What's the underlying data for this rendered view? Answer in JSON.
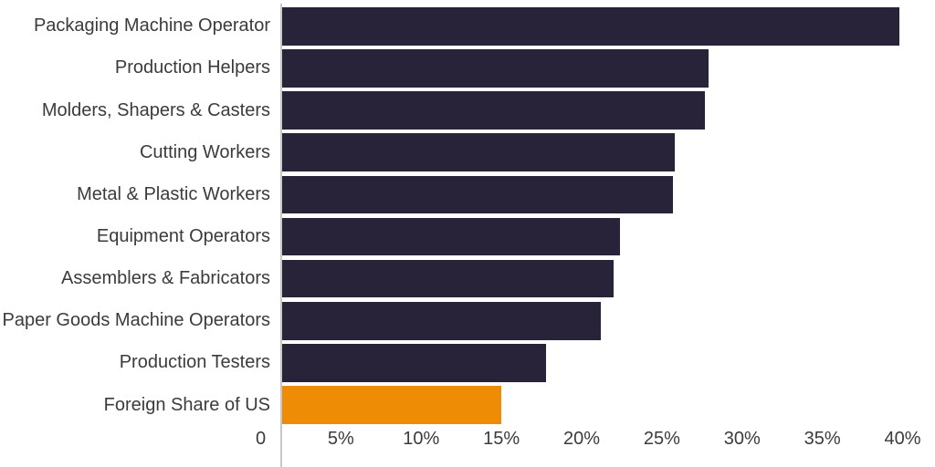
{
  "chart_data": {
    "type": "bar",
    "orientation": "horizontal",
    "title": "",
    "xlabel": "",
    "ylabel": "",
    "unit": "%",
    "xlim": [
      0,
      40
    ],
    "grid": false,
    "legend": false,
    "categories": [
      "Packaging Machine Operator",
      "Production Helpers",
      "Molders, Shapers & Casters",
      "Cutting Workers",
      "Metal & Plastic Workers",
      "Equipment Operators",
      "Assemblers & Fabricators",
      "Paper Goods Machine Operators",
      "Production Testers",
      "Foreign Share of US"
    ],
    "values": [
      39.8,
      27.9,
      27.7,
      25.8,
      25.7,
      22.4,
      22.0,
      21.2,
      17.8,
      15.0
    ],
    "highlight_category": "Foreign Share of US",
    "highlight_index": 9,
    "x_ticks": [
      {
        "value": 0,
        "label": "0"
      },
      {
        "value": 5,
        "label": "5%"
      },
      {
        "value": 10,
        "label": "10%"
      },
      {
        "value": 15,
        "label": "15%"
      },
      {
        "value": 20,
        "label": "20%"
      },
      {
        "value": 25,
        "label": "25%"
      },
      {
        "value": 30,
        "label": "30%"
      },
      {
        "value": 35,
        "label": "35%"
      },
      {
        "value": 40,
        "label": "40%"
      }
    ],
    "colors": {
      "bar_default": "#292339",
      "bar_highlight": "#ee8d05",
      "axis_line": "#c7c7c7",
      "text": "#3b3b3b",
      "background": "#ffffff"
    }
  }
}
